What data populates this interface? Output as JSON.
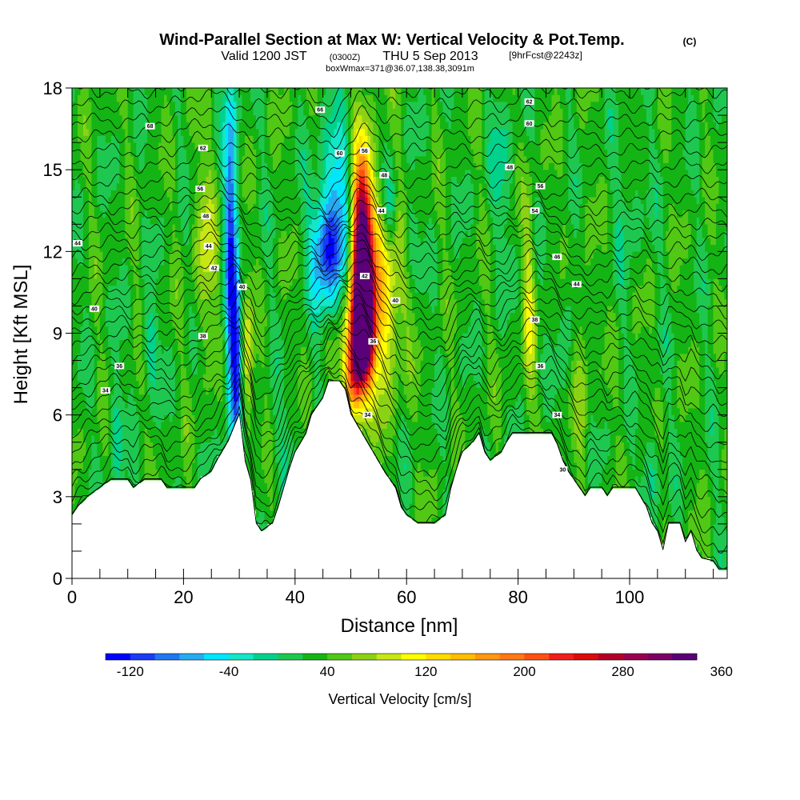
{
  "header": {
    "title": "Wind-Parallel Section at Max W: Vertical Velocity & Pot.Temp.",
    "title_mark": "(C)",
    "valid_main": "Valid 1200 JST",
    "valid_utc": "(0300Z)",
    "valid_date": "THU 5 Sep 2013",
    "forecast": "[9hrFcst@2243z]",
    "box_info": "boxWmax=371@36.07,138.38,3091m"
  },
  "chart_data": {
    "type": "heatmap",
    "xlabel": "Distance [nm]",
    "ylabel": "Height [Kft MSL]",
    "xlim": [
      0,
      117.5
    ],
    "ylim": [
      0,
      18
    ],
    "xticks": [
      0,
      20,
      40,
      60,
      80,
      100
    ],
    "yticks": [
      0,
      3,
      6,
      9,
      12,
      15,
      18
    ],
    "colorbar": {
      "label": "Vertical Velocity [cm/s]",
      "min": -140,
      "step": 20,
      "tick_labels": [
        -120,
        -40,
        40,
        120,
        200,
        280,
        360
      ],
      "colors": [
        "#0000ff",
        "#1a3cf5",
        "#1e78f0",
        "#28aaf0",
        "#00e6ff",
        "#14e6c8",
        "#00d28c",
        "#1ec850",
        "#14b414",
        "#50c814",
        "#8cd214",
        "#c8e614",
        "#ffff00",
        "#ffdc00",
        "#ffbe00",
        "#ff9614",
        "#ff7814",
        "#ff5014",
        "#f01e1e",
        "#dc0a0a",
        "#b40028",
        "#9b0050",
        "#7d0064",
        "#5a0078"
      ]
    },
    "terrain_kft": [
      [
        0,
        2.3
      ],
      [
        1,
        2.6
      ],
      [
        3,
        3.0
      ],
      [
        5,
        3.3
      ],
      [
        7,
        3.6
      ],
      [
        10,
        3.6
      ],
      [
        11,
        3.3
      ],
      [
        13,
        3.6
      ],
      [
        16,
        3.6
      ],
      [
        17,
        3.3
      ],
      [
        22,
        3.3
      ],
      [
        23,
        3.6
      ],
      [
        25,
        3.9
      ],
      [
        26,
        4.3
      ],
      [
        28,
        5.0
      ],
      [
        30,
        6.0
      ],
      [
        31,
        4.3
      ],
      [
        32,
        3.6
      ],
      [
        33,
        2.0
      ],
      [
        34,
        1.7
      ],
      [
        36,
        2.0
      ],
      [
        37,
        2.6
      ],
      [
        38,
        3.3
      ],
      [
        39,
        4.0
      ],
      [
        40,
        4.6
      ],
      [
        42,
        5.3
      ],
      [
        43,
        6.0
      ],
      [
        45,
        6.6
      ],
      [
        46,
        7.2
      ],
      [
        48,
        7.2
      ],
      [
        49,
        6.9
      ],
      [
        50,
        6.0
      ],
      [
        52,
        5.3
      ],
      [
        54,
        4.6
      ],
      [
        56,
        3.9
      ],
      [
        58,
        3.3
      ],
      [
        59,
        2.6
      ],
      [
        60,
        2.3
      ],
      [
        62,
        2.0
      ],
      [
        65,
        2.0
      ],
      [
        67,
        2.3
      ],
      [
        68,
        3.3
      ],
      [
        69,
        4.0
      ],
      [
        70,
        4.6
      ],
      [
        72,
        5.0
      ],
      [
        73,
        5.3
      ],
      [
        74,
        4.6
      ],
      [
        75,
        4.3
      ],
      [
        77,
        4.6
      ],
      [
        78,
        5.0
      ],
      [
        79,
        5.3
      ],
      [
        86,
        5.3
      ],
      [
        87,
        4.9
      ],
      [
        88,
        4.3
      ],
      [
        89,
        3.9
      ],
      [
        90,
        3.6
      ],
      [
        91,
        3.3
      ],
      [
        92,
        3.0
      ],
      [
        93,
        3.3
      ],
      [
        95,
        3.3
      ],
      [
        96,
        3.0
      ],
      [
        97,
        3.3
      ],
      [
        101,
        3.3
      ],
      [
        103,
        2.6
      ],
      [
        104,
        2.0
      ],
      [
        105,
        1.7
      ],
      [
        106,
        1.0
      ],
      [
        107,
        2.0
      ],
      [
        109,
        2.0
      ],
      [
        110,
        1.3
      ],
      [
        111,
        1.7
      ],
      [
        112,
        1.0
      ],
      [
        113,
        0.7
      ],
      [
        115,
        0.6
      ],
      [
        116,
        0.3
      ],
      [
        117.5,
        0.3
      ]
    ],
    "velocity_features": [
      {
        "x": 28.5,
        "y": 12.0,
        "sx": 0.8,
        "sy": 5.0,
        "w": -140
      },
      {
        "x": 29.5,
        "y": 8.0,
        "sx": 0.6,
        "sy": 2.0,
        "w": -120
      },
      {
        "x": 31.5,
        "y": 8.0,
        "sx": 0.7,
        "sy": 1.8,
        "w": 60
      },
      {
        "x": 46,
        "y": 12.0,
        "sx": 2.2,
        "sy": 1.4,
        "w": -150
      },
      {
        "x": 47.5,
        "y": 14.8,
        "sx": 2.0,
        "sy": 1.5,
        "w": -70
      },
      {
        "x": 52,
        "y": 11.5,
        "sx": 1.3,
        "sy": 2.6,
        "w": 370
      },
      {
        "x": 52,
        "y": 9.0,
        "sx": 1.4,
        "sy": 1.2,
        "w": 260
      },
      {
        "x": 50.5,
        "y": 7.4,
        "sx": 1.2,
        "sy": 1.0,
        "w": 140
      },
      {
        "x": 55.5,
        "y": 10.5,
        "sx": 2.5,
        "sy": 2.5,
        "w": 110
      },
      {
        "x": 57,
        "y": 13.5,
        "sx": 1.0,
        "sy": 1.2,
        "w": -60
      },
      {
        "x": 60.5,
        "y": 12.5,
        "sx": 1.0,
        "sy": 1.0,
        "w": -40
      },
      {
        "x": 24,
        "y": 12.0,
        "sx": 1.5,
        "sy": 2.5,
        "w": 50
      },
      {
        "x": 14,
        "y": 8.5,
        "sx": 1.0,
        "sy": 1.2,
        "w": -45
      },
      {
        "x": 8,
        "y": 5.5,
        "sx": 0.8,
        "sy": 1.6,
        "w": -40
      },
      {
        "x": 82,
        "y": 10.0,
        "sx": 0.8,
        "sy": 3.0,
        "w": 55
      },
      {
        "x": 89,
        "y": 10.0,
        "sx": 0.8,
        "sy": 1.5,
        "w": -30
      },
      {
        "x": 91.5,
        "y": 8.0,
        "sx": 0.8,
        "sy": 2.5,
        "w": 40
      },
      {
        "x": 77,
        "y": 15.0,
        "sx": 1.5,
        "sy": 2.0,
        "w": -30
      },
      {
        "x": 104,
        "y": 4.0,
        "sx": 1.2,
        "sy": 1.0,
        "w": -40
      },
      {
        "x": 38,
        "y": 5.0,
        "sx": 2.0,
        "sy": 1.2,
        "w": -20
      },
      {
        "x": 100,
        "y": 14.0,
        "sx": 2.0,
        "sy": 2.0,
        "w": -20
      }
    ],
    "isentrope_labels": [
      {
        "x": 1,
        "y": 12.3,
        "text": "44"
      },
      {
        "x": 4,
        "y": 9.9,
        "text": "40"
      },
      {
        "x": 6,
        "y": 6.9,
        "text": "34"
      },
      {
        "x": 8.5,
        "y": 7.8,
        "text": "36"
      },
      {
        "x": 14,
        "y": 16.6,
        "text": "68"
      },
      {
        "x": 23.5,
        "y": 15.8,
        "text": "62"
      },
      {
        "x": 23,
        "y": 14.3,
        "text": "56"
      },
      {
        "x": 24,
        "y": 13.3,
        "text": "48"
      },
      {
        "x": 24.5,
        "y": 12.2,
        "text": "44"
      },
      {
        "x": 25.5,
        "y": 11.4,
        "text": "42"
      },
      {
        "x": 23.5,
        "y": 8.9,
        "text": "38"
      },
      {
        "x": 30.5,
        "y": 10.7,
        "text": "40"
      },
      {
        "x": 44.5,
        "y": 17.2,
        "text": "66"
      },
      {
        "x": 48,
        "y": 15.6,
        "text": "60"
      },
      {
        "x": 52.5,
        "y": 15.7,
        "text": "56"
      },
      {
        "x": 56,
        "y": 14.8,
        "text": "48"
      },
      {
        "x": 55.5,
        "y": 13.5,
        "text": "44"
      },
      {
        "x": 52.5,
        "y": 11.1,
        "text": "42"
      },
      {
        "x": 58,
        "y": 10.2,
        "text": "40"
      },
      {
        "x": 54,
        "y": 8.7,
        "text": "36"
      },
      {
        "x": 53,
        "y": 6.0,
        "text": "34"
      },
      {
        "x": 82,
        "y": 17.5,
        "text": "62"
      },
      {
        "x": 82,
        "y": 16.7,
        "text": "60"
      },
      {
        "x": 78.5,
        "y": 15.1,
        "text": "48"
      },
      {
        "x": 84,
        "y": 14.4,
        "text": "56"
      },
      {
        "x": 83,
        "y": 13.5,
        "text": "54"
      },
      {
        "x": 87,
        "y": 11.8,
        "text": "46"
      },
      {
        "x": 90.5,
        "y": 10.8,
        "text": "44"
      },
      {
        "x": 83,
        "y": 9.5,
        "text": "38"
      },
      {
        "x": 84,
        "y": 7.8,
        "text": "36"
      },
      {
        "x": 87,
        "y": 6.0,
        "text": "34"
      },
      {
        "x": 88,
        "y": 4.0,
        "text": "30"
      }
    ]
  }
}
